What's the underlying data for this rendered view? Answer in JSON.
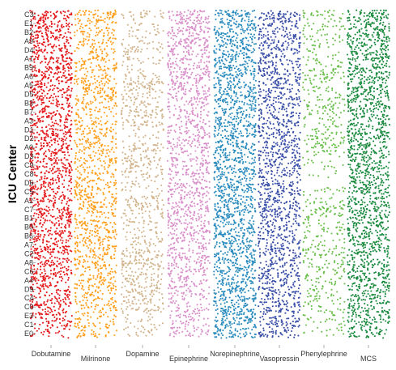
{
  "chart_data": {
    "type": "scatter",
    "subtype": "categorical-strip",
    "title": "",
    "xlabel": "",
    "ylabel": "ICU Center",
    "categories": [
      "Dobutamine",
      "Milrinone",
      "Dopamine",
      "Epinephrine",
      "Norepinephrine",
      "Vasopressin",
      "Phenylephrine",
      "MCS"
    ],
    "centers": [
      "C3",
      "E1",
      "B2",
      "A9",
      "D4",
      "A1",
      "B9",
      "A6",
      "A5",
      "D5",
      "B3",
      "B7",
      "A3",
      "D1",
      "D2",
      "A0",
      "D3",
      "C9",
      "C8",
      "D6",
      "C5",
      "A2",
      "C7",
      "B1",
      "B0",
      "B6",
      "A7",
      "C2",
      "A8",
      "C6",
      "A4",
      "D9",
      "C4",
      "C0",
      "E3",
      "C1",
      "E0"
    ],
    "series": [
      {
        "name": "Dobutamine",
        "color": "#e41a1c",
        "density": [
          1.0,
          0.9,
          0.9,
          0.9,
          0.9,
          0.95,
          0.95,
          0.95,
          0.95,
          0.9,
          0.85,
          0.85,
          0.85,
          0.9,
          0.9,
          0.9,
          0.9,
          0.9,
          0.85,
          0.85,
          0.85,
          0.9,
          0.9,
          0.9,
          0.95,
          0.95,
          0.9,
          0.85,
          0.85,
          0.8,
          0.8,
          0.7,
          0.8,
          0.8,
          0.7,
          0.6,
          0.4
        ]
      },
      {
        "name": "Milrinone",
        "color": "#ff9f1c",
        "density": [
          0.95,
          0.6,
          0.7,
          0.6,
          0.5,
          0.6,
          0.7,
          0.6,
          0.8,
          0.7,
          0.6,
          0.5,
          0.6,
          0.7,
          0.7,
          0.7,
          0.6,
          0.6,
          0.6,
          0.7,
          0.8,
          0.85,
          0.7,
          0.6,
          0.8,
          0.7,
          0.8,
          0.7,
          0.8,
          0.6,
          0.7,
          0.7,
          0.6,
          0.6,
          0.5,
          0.6,
          0.5
        ]
      },
      {
        "name": "Dopamine",
        "color": "#d2b48c",
        "density": [
          0.5,
          0.2,
          0.3,
          0.3,
          0.5,
          0.3,
          0.2,
          0.4,
          0.9,
          0.5,
          0.5,
          0.7,
          0.6,
          0.3,
          0.2,
          0.7,
          0.5,
          0.6,
          0.5,
          0.3,
          0.2,
          0.7,
          0.6,
          0.4,
          0.3,
          0.4,
          0.4,
          0.7,
          0.9,
          0.5,
          0.6,
          0.7,
          0.6,
          0.7,
          0.2,
          0.3,
          0.3
        ]
      },
      {
        "name": "Epinephrine",
        "color": "#d98fc9",
        "density": [
          0.9,
          0.8,
          0.9,
          0.9,
          0.8,
          0.7,
          0.8,
          0.9,
          0.8,
          0.7,
          0.7,
          0.6,
          0.6,
          0.7,
          0.7,
          0.8,
          0.6,
          0.6,
          0.7,
          0.7,
          0.9,
          0.7,
          0.9,
          0.7,
          0.8,
          0.8,
          0.7,
          0.8,
          0.6,
          0.7,
          0.6,
          0.6,
          0.5,
          0.5,
          0.5,
          0.5,
          0.5
        ]
      },
      {
        "name": "Norepinephrine",
        "color": "#2b8cbe",
        "density": [
          1.0,
          0.95,
          0.95,
          0.95,
          0.95,
          0.95,
          0.95,
          0.95,
          0.95,
          0.95,
          0.95,
          0.9,
          0.95,
          0.95,
          0.95,
          0.95,
          0.95,
          0.95,
          0.95,
          0.95,
          0.95,
          0.95,
          0.95,
          0.95,
          0.95,
          0.95,
          0.95,
          0.95,
          0.95,
          0.95,
          0.95,
          0.95,
          0.95,
          0.95,
          0.95,
          0.9,
          0.9
        ]
      },
      {
        "name": "Vasopressin",
        "color": "#3a4fa8",
        "density": [
          0.95,
          0.7,
          0.7,
          0.9,
          0.8,
          0.7,
          0.8,
          0.9,
          0.8,
          0.8,
          0.7,
          0.7,
          0.8,
          0.8,
          0.8,
          0.8,
          0.9,
          0.8,
          0.8,
          0.8,
          0.9,
          0.8,
          0.9,
          0.8,
          0.8,
          0.7,
          0.8,
          0.8,
          0.7,
          0.8,
          0.8,
          0.8,
          0.7,
          0.8,
          0.6,
          0.8,
          0.7
        ]
      },
      {
        "name": "Phenylephrine",
        "color": "#6abf4b",
        "density": [
          0.5,
          0.3,
          0.3,
          0.3,
          0.2,
          0.3,
          0.4,
          0.6,
          0.3,
          0.3,
          0.5,
          0.4,
          0.3,
          0.4,
          0.5,
          0.6,
          0.2,
          0.2,
          0.1,
          0.0,
          0.3,
          0.3,
          0.6,
          0.4,
          0.4,
          0.3,
          0.4,
          0.5,
          0.4,
          0.4,
          0.4,
          0.3,
          0.4,
          0.3,
          0.3,
          0.2,
          0.2
        ]
      },
      {
        "name": "MCS",
        "color": "#1a8a3e",
        "density": [
          1.0,
          0.9,
          0.95,
          0.95,
          0.95,
          0.9,
          0.95,
          0.95,
          0.95,
          0.9,
          0.95,
          0.9,
          0.9,
          0.95,
          0.95,
          0.9,
          0.9,
          0.9,
          0.85,
          0.85,
          0.9,
          0.9,
          0.9,
          0.9,
          0.9,
          0.85,
          0.85,
          0.85,
          0.8,
          0.8,
          0.9,
          0.8,
          0.8,
          0.8,
          0.8,
          0.75,
          0.7
        ]
      }
    ],
    "grid": false,
    "legend": "none"
  }
}
